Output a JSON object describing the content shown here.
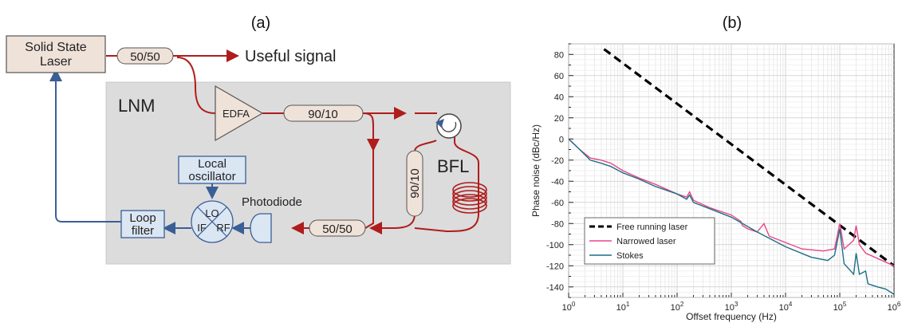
{
  "panels": {
    "a": {
      "label": "(a)",
      "blocks": {
        "laser": [
          "Solid State",
          "Laser"
        ],
        "coupler_out": "50/50",
        "useful_signal": "Useful signal",
        "lnm": "LNM",
        "edfa": "EDFA",
        "coupler_9010_h": "90/10",
        "coupler_9010_v": "90/10",
        "bfl": "BFL",
        "local_osc": [
          "Local",
          "oscillator"
        ],
        "photodiode": "Photodiode",
        "coupler_5050_bottom": "50/50",
        "loop_filter": [
          "Loop",
          "filter"
        ],
        "mixer_lo": "LO",
        "mixer_if": "IF",
        "mixer_rf": "RF"
      },
      "colors": {
        "fiber": "#b01c1c",
        "electric": "#3a5e96",
        "lnm_box": "#dcdcdc",
        "block_fill": "#efe2d9"
      }
    },
    "b": {
      "label": "(b)",
      "y_axis_title": "Phase noise (dBc/Hz)",
      "x_axis_title": "Offset frequency (Hz)"
    }
  },
  "chart_data": {
    "type": "line",
    "xscale": "log",
    "xlim": [
      1,
      1000000
    ],
    "ylim": [
      -150,
      90
    ],
    "grid": true,
    "legend_position": "bottom-left",
    "y_ticks": [
      "80",
      "60",
      "40",
      "20",
      "0",
      "-20",
      "-40",
      "-60",
      "-80",
      "-100",
      "-120",
      "-140"
    ],
    "x_ticks": [
      {
        "base": "10",
        "exp": "0"
      },
      {
        "base": "10",
        "exp": "1"
      },
      {
        "base": "10",
        "exp": "2"
      },
      {
        "base": "10",
        "exp": "3"
      },
      {
        "base": "10",
        "exp": "4"
      },
      {
        "base": "10",
        "exp": "5"
      },
      {
        "base": "10",
        "exp": "6"
      }
    ],
    "series": [
      {
        "name": "Free running laser",
        "color": "#000000",
        "dashed": true,
        "points": [
          [
            4.5,
            85
          ],
          [
            1000000,
            -120
          ]
        ]
      },
      {
        "name": "Narrowed laser",
        "color": "#e8488a",
        "points": [
          [
            1,
            0
          ],
          [
            1.6,
            -10
          ],
          [
            2.5,
            -18
          ],
          [
            4,
            -20
          ],
          [
            6,
            -23
          ],
          [
            10,
            -30
          ],
          [
            20,
            -37
          ],
          [
            40,
            -43
          ],
          [
            100,
            -52
          ],
          [
            150,
            -55
          ],
          [
            170,
            -50
          ],
          [
            200,
            -58
          ],
          [
            400,
            -65
          ],
          [
            1000,
            -72
          ],
          [
            1500,
            -78
          ],
          [
            1600,
            -82
          ],
          [
            2000,
            -85
          ],
          [
            3000,
            -88
          ],
          [
            4000,
            -80
          ],
          [
            5000,
            -92
          ],
          [
            10000,
            -98
          ],
          [
            20000,
            -104
          ],
          [
            50000,
            -106
          ],
          [
            80000,
            -104
          ],
          [
            100000,
            -80
          ],
          [
            120000,
            -104
          ],
          [
            180000,
            -96
          ],
          [
            200000,
            -82
          ],
          [
            230000,
            -100
          ],
          [
            300000,
            -108
          ],
          [
            1000000,
            -120
          ]
        ]
      },
      {
        "name": "Stokes",
        "color": "#1f6f86",
        "points": [
          [
            1,
            0
          ],
          [
            1.6,
            -10
          ],
          [
            2.5,
            -20
          ],
          [
            4,
            -23
          ],
          [
            6,
            -26
          ],
          [
            10,
            -32
          ],
          [
            20,
            -38
          ],
          [
            40,
            -45
          ],
          [
            100,
            -52
          ],
          [
            150,
            -57
          ],
          [
            170,
            -53
          ],
          [
            200,
            -60
          ],
          [
            400,
            -66
          ],
          [
            1000,
            -74
          ],
          [
            3000,
            -88
          ],
          [
            10000,
            -102
          ],
          [
            30000,
            -112
          ],
          [
            60000,
            -115
          ],
          [
            80000,
            -110
          ],
          [
            100000,
            -85
          ],
          [
            120000,
            -118
          ],
          [
            180000,
            -128
          ],
          [
            200000,
            -108
          ],
          [
            230000,
            -128
          ],
          [
            300000,
            -125
          ],
          [
            330000,
            -137
          ],
          [
            500000,
            -140
          ],
          [
            700000,
            -142
          ],
          [
            1000000,
            -147
          ]
        ]
      }
    ]
  }
}
